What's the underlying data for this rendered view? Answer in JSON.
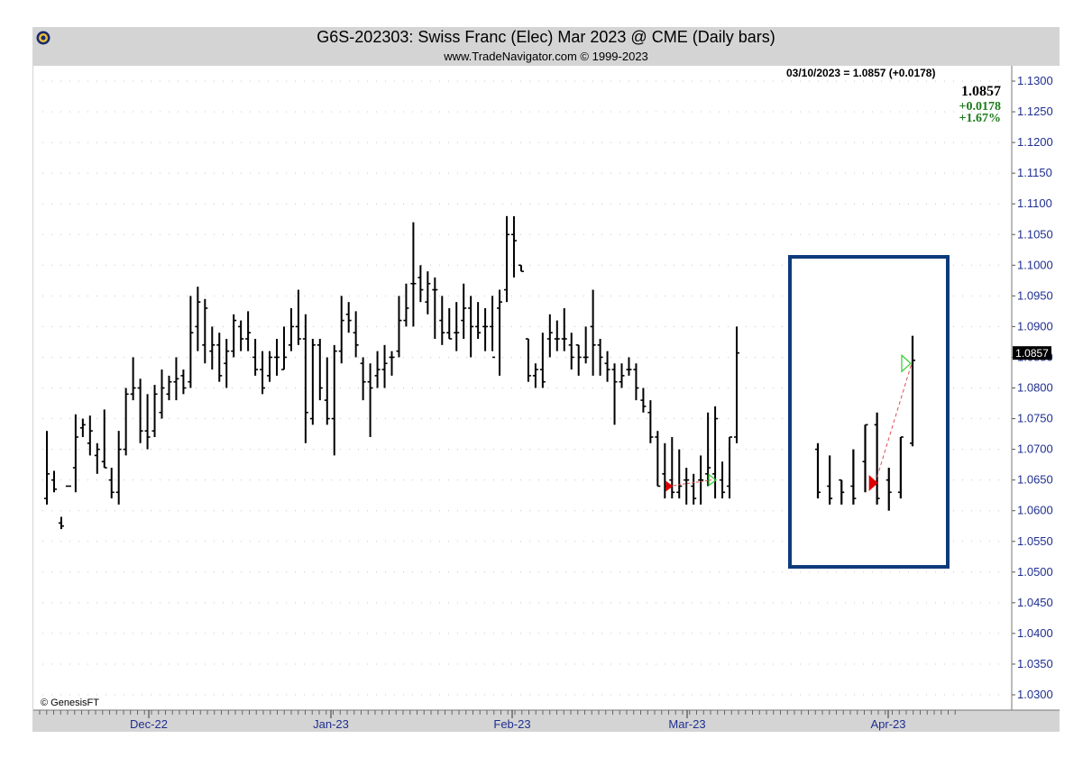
{
  "header": {
    "title": "G6S-202303:  Swiss Franc (Elec) Mar 2023 @ CME  (Daily bars)",
    "subtitle": "www.TradeNavigator.com © 1999-2023"
  },
  "readout": {
    "text": "03/10/2023 = 1.0857 (+0.0178)",
    "last": "1.0857",
    "change": "+0.0178",
    "change_pct": "+1.67%",
    "price_tag": "1.0857"
  },
  "footer": {
    "copyright": "© GenesisFT"
  },
  "colors": {
    "frame": "#d4d4d4",
    "axis_text": "#1f2f8f",
    "bar": "#000000",
    "highlight_box": "#0d3b7a",
    "up_marker": "#33cc33",
    "down_marker": "#dd0000",
    "trend_line": "#e05050",
    "positive": "#1a7a1a"
  },
  "chart_data": {
    "type": "ohlc",
    "title": "G6S-202303:  Swiss Franc (Elec) Mar 2023 @ CME  (Daily bars)",
    "ylim": [
      1.025,
      1.1325
    ],
    "yticks": [
      "1.1300",
      "1.1250",
      "1.1200",
      "1.1150",
      "1.1100",
      "1.1050",
      "1.1000",
      "1.0950",
      "1.0900",
      "1.0850",
      "1.0800",
      "1.0750",
      "1.0700",
      "1.0650",
      "1.0600",
      "1.0550",
      "1.0500",
      "1.0450",
      "1.0400",
      "1.0350",
      "1.0300"
    ],
    "xticks": [
      "Dec-22",
      "Jan-23",
      "Feb-23",
      "Mar-23",
      "Apr-23"
    ],
    "grid": true,
    "last_value": 1.0857,
    "bars": [
      {
        "o": 1.062,
        "h": 1.073,
        "l": 1.061,
        "c": 1.066
      },
      {
        "o": 1.065,
        "h": 1.0665,
        "l": 1.063,
        "c": 1.0635
      },
      {
        "o": 1.058,
        "h": 1.059,
        "l": 1.057,
        "c": 1.0575
      },
      {
        "o": 1.064,
        "h": 1.064,
        "l": 1.064,
        "c": 1.064
      },
      {
        "o": 1.067,
        "h": 1.0757,
        "l": 1.063,
        "c": 1.072
      },
      {
        "o": 1.0735,
        "h": 1.075,
        "l": 1.072,
        "c": 1.074
      },
      {
        "o": 1.071,
        "h": 1.0755,
        "l": 1.069,
        "c": 1.073
      },
      {
        "o": 1.069,
        "h": 1.071,
        "l": 1.066,
        "c": 1.07
      },
      {
        "o": 1.068,
        "h": 1.0765,
        "l": 1.067,
        "c": 1.067
      },
      {
        "o": 1.065,
        "h": 1.067,
        "l": 1.062,
        "c": 1.063
      },
      {
        "o": 1.063,
        "h": 1.073,
        "l": 1.061,
        "c": 1.07
      },
      {
        "o": 1.07,
        "h": 1.08,
        "l": 1.069,
        "c": 1.079
      },
      {
        "o": 1.079,
        "h": 1.085,
        "l": 1.078,
        "c": 1.08
      },
      {
        "o": 1.08,
        "h": 1.0815,
        "l": 1.071,
        "c": 1.073
      },
      {
        "o": 1.073,
        "h": 1.079,
        "l": 1.07,
        "c": 1.072
      },
      {
        "o": 1.073,
        "h": 1.0805,
        "l": 1.072,
        "c": 1.079
      },
      {
        "o": 1.076,
        "h": 1.083,
        "l": 1.075,
        "c": 1.08
      },
      {
        "o": 1.079,
        "h": 1.082,
        "l": 1.078,
        "c": 1.081
      },
      {
        "o": 1.081,
        "h": 1.085,
        "l": 1.078,
        "c": 1.0815
      },
      {
        "o": 1.082,
        "h": 1.083,
        "l": 1.079,
        "c": 1.08
      },
      {
        "o": 1.081,
        "h": 1.095,
        "l": 1.08,
        "c": 1.089
      },
      {
        "o": 1.09,
        "h": 1.0965,
        "l": 1.086,
        "c": 1.094
      },
      {
        "o": 1.087,
        "h": 1.0945,
        "l": 1.084,
        "c": 1.093
      },
      {
        "o": 1.086,
        "h": 1.09,
        "l": 1.083,
        "c": 1.087
      },
      {
        "o": 1.087,
        "h": 1.089,
        "l": 1.081,
        "c": 1.082
      },
      {
        "o": 1.084,
        "h": 1.088,
        "l": 1.08,
        "c": 1.086
      },
      {
        "o": 1.086,
        "h": 1.092,
        "l": 1.085,
        "c": 1.091
      },
      {
        "o": 1.09,
        "h": 1.091,
        "l": 1.086,
        "c": 1.088
      },
      {
        "o": 1.088,
        "h": 1.0925,
        "l": 1.086,
        "c": 1.089
      },
      {
        "o": 1.085,
        "h": 1.088,
        "l": 1.082,
        "c": 1.083
      },
      {
        "o": 1.083,
        "h": 1.086,
        "l": 1.079,
        "c": 1.08
      },
      {
        "o": 1.082,
        "h": 1.086,
        "l": 1.081,
        "c": 1.085
      },
      {
        "o": 1.085,
        "h": 1.088,
        "l": 1.082,
        "c": 1.085
      },
      {
        "o": 1.083,
        "h": 1.09,
        "l": 1.083,
        "c": 1.085
      },
      {
        "o": 1.087,
        "h": 1.093,
        "l": 1.086,
        "c": 1.09
      },
      {
        "o": 1.09,
        "h": 1.096,
        "l": 1.087,
        "c": 1.088
      },
      {
        "o": 1.088,
        "h": 1.092,
        "l": 1.071,
        "c": 1.076
      },
      {
        "o": 1.075,
        "h": 1.088,
        "l": 1.074,
        "c": 1.087
      },
      {
        "o": 1.087,
        "h": 1.088,
        "l": 1.078,
        "c": 1.08
      },
      {
        "o": 1.078,
        "h": 1.085,
        "l": 1.074,
        "c": 1.075
      },
      {
        "o": 1.075,
        "h": 1.087,
        "l": 1.069,
        "c": 1.086
      },
      {
        "o": 1.086,
        "h": 1.095,
        "l": 1.084,
        "c": 1.091
      },
      {
        "o": 1.092,
        "h": 1.094,
        "l": 1.089,
        "c": 1.091
      },
      {
        "o": 1.089,
        "h": 1.0925,
        "l": 1.085,
        "c": 1.087
      },
      {
        "o": 1.084,
        "h": 1.085,
        "l": 1.078,
        "c": 1.081
      },
      {
        "o": 1.081,
        "h": 1.084,
        "l": 1.072,
        "c": 1.08
      },
      {
        "o": 1.082,
        "h": 1.086,
        "l": 1.08,
        "c": 1.083
      },
      {
        "o": 1.083,
        "h": 1.087,
        "l": 1.08,
        "c": 1.084
      },
      {
        "o": 1.085,
        "h": 1.086,
        "l": 1.082,
        "c": 1.085
      },
      {
        "o": 1.086,
        "h": 1.095,
        "l": 1.085,
        "c": 1.091
      },
      {
        "o": 1.091,
        "h": 1.097,
        "l": 1.09,
        "c": 1.093
      },
      {
        "o": 1.097,
        "h": 1.107,
        "l": 1.09,
        "c": 1.097
      },
      {
        "o": 1.098,
        "h": 1.1,
        "l": 1.094,
        "c": 1.096
      },
      {
        "o": 1.094,
        "h": 1.099,
        "l": 1.092,
        "c": 1.097
      },
      {
        "o": 1.096,
        "h": 1.098,
        "l": 1.088,
        "c": 1.096
      },
      {
        "o": 1.091,
        "h": 1.095,
        "l": 1.087,
        "c": 1.089
      },
      {
        "o": 1.089,
        "h": 1.093,
        "l": 1.088,
        "c": 1.088
      },
      {
        "o": 1.089,
        "h": 1.094,
        "l": 1.086,
        "c": 1.089
      },
      {
        "o": 1.091,
        "h": 1.097,
        "l": 1.088,
        "c": 1.093
      },
      {
        "o": 1.093,
        "h": 1.095,
        "l": 1.085,
        "c": 1.09
      },
      {
        "o": 1.09,
        "h": 1.094,
        "l": 1.088,
        "c": 1.089
      },
      {
        "o": 1.09,
        "h": 1.093,
        "l": 1.086,
        "c": 1.09
      },
      {
        "o": 1.09,
        "h": 1.095,
        "l": 1.086,
        "c": 1.085
      },
      {
        "o": 1.093,
        "h": 1.096,
        "l": 1.082,
        "c": 1.094
      },
      {
        "o": 1.096,
        "h": 1.108,
        "l": 1.094,
        "c": 1.105
      },
      {
        "o": 1.105,
        "h": 1.108,
        "l": 1.098,
        "c": 1.104
      },
      {
        "o": 1.1,
        "h": 1.1,
        "l": 1.099,
        "c": 1.099
      },
      {
        "o": 1.088,
        "h": 1.088,
        "l": 1.081,
        "c": 1.082
      },
      {
        "o": 1.082,
        "h": 1.084,
        "l": 1.08,
        "c": 1.083
      },
      {
        "o": 1.083,
        "h": 1.089,
        "l": 1.08,
        "c": 1.081
      },
      {
        "o": 1.088,
        "h": 1.092,
        "l": 1.085,
        "c": 1.089
      },
      {
        "o": 1.088,
        "h": 1.091,
        "l": 1.086,
        "c": 1.088
      },
      {
        "o": 1.088,
        "h": 1.093,
        "l": 1.086,
        "c": 1.088
      },
      {
        "o": 1.087,
        "h": 1.089,
        "l": 1.083,
        "c": 1.085
      },
      {
        "o": 1.087,
        "h": 1.087,
        "l": 1.082,
        "c": 1.085
      },
      {
        "o": 1.085,
        "h": 1.09,
        "l": 1.084,
        "c": 1.085
      },
      {
        "o": 1.09,
        "h": 1.096,
        "l": 1.082,
        "c": 1.087
      },
      {
        "o": 1.087,
        "h": 1.088,
        "l": 1.082,
        "c": 1.085
      },
      {
        "o": 1.084,
        "h": 1.086,
        "l": 1.081,
        "c": 1.083
      },
      {
        "o": 1.083,
        "h": 1.084,
        "l": 1.074,
        "c": 1.081
      },
      {
        "o": 1.081,
        "h": 1.084,
        "l": 1.08,
        "c": 1.082
      },
      {
        "o": 1.083,
        "h": 1.085,
        "l": 1.082,
        "c": 1.083
      },
      {
        "o": 1.083,
        "h": 1.084,
        "l": 1.078,
        "c": 1.08
      },
      {
        "o": 1.078,
        "h": 1.08,
        "l": 1.076,
        "c": 1.077
      },
      {
        "o": 1.076,
        "h": 1.078,
        "l": 1.071,
        "c": 1.072
      },
      {
        "o": 1.072,
        "h": 1.073,
        "l": 1.064,
        "c": 1.064
      },
      {
        "o": 1.066,
        "h": 1.071,
        "l": 1.062,
        "c": 1.064
      },
      {
        "o": 1.065,
        "h": 1.072,
        "l": 1.062,
        "c": 1.063
      },
      {
        "o": 1.063,
        "h": 1.07,
        "l": 1.062,
        "c": 1.064
      },
      {
        "o": 1.065,
        "h": 1.067,
        "l": 1.061,
        "c": 1.065
      },
      {
        "o": 1.064,
        "h": 1.066,
        "l": 1.061,
        "c": 1.062
      },
      {
        "o": 1.065,
        "h": 1.069,
        "l": 1.061,
        "c": 1.065
      },
      {
        "o": 1.066,
        "h": 1.076,
        "l": 1.064,
        "c": 1.067
      },
      {
        "o": 1.066,
        "h": 1.077,
        "l": 1.062,
        "c": 1.075
      },
      {
        "o": 1.065,
        "h": 1.068,
        "l": 1.062,
        "c": 1.063
      },
      {
        "o": 1.064,
        "h": 1.072,
        "l": 1.062,
        "c": 1.072
      },
      {
        "o": 1.072,
        "h": 1.09,
        "l": 1.071,
        "c": 1.0857
      }
    ],
    "markers": [
      {
        "type": "down",
        "bar": 87,
        "price": 1.064
      },
      {
        "type": "up",
        "bar": 93,
        "price": 1.065
      }
    ],
    "inset": {
      "bars": [
        {
          "o": 1.07,
          "h": 1.071,
          "l": 1.062,
          "c": 1.063
        },
        {
          "o": 1.064,
          "h": 1.069,
          "l": 1.061,
          "c": 1.062
        },
        {
          "o": 1.065,
          "h": 1.065,
          "l": 1.061,
          "c": 1.063
        },
        {
          "o": 1.064,
          "h": 1.07,
          "l": 1.061,
          "c": 1.062
        },
        {
          "o": 1.068,
          "h": 1.074,
          "l": 1.063,
          "c": 1.074
        },
        {
          "o": 1.074,
          "h": 1.076,
          "l": 1.061,
          "c": 1.062
        },
        {
          "o": 1.065,
          "h": 1.067,
          "l": 1.06,
          "c": 1.063
        },
        {
          "o": 1.063,
          "h": 1.072,
          "l": 1.062,
          "c": 1.072
        },
        {
          "o": 1.071,
          "h": 1.0885,
          "l": 1.0705,
          "c": 1.0845
        }
      ],
      "markers": [
        {
          "type": "down",
          "bar": 5,
          "price": 1.0645
        },
        {
          "type": "up",
          "bar": 8,
          "price": 1.084
        }
      ]
    }
  }
}
